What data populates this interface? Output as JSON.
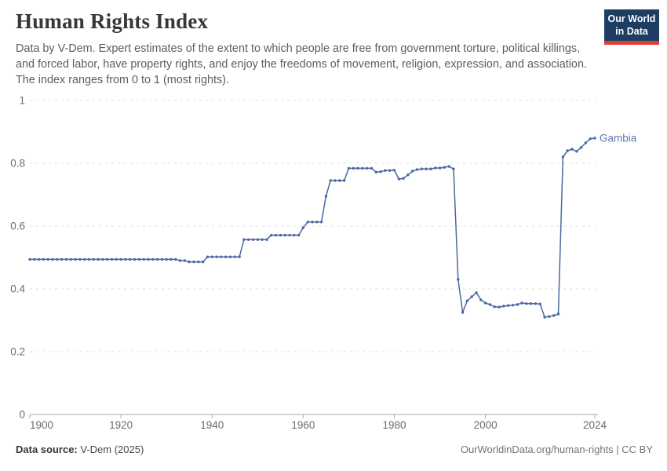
{
  "header": {
    "title": "Human Rights Index",
    "subtitle": "Data by V-Dem. Expert estimates of the extent to which people are free from government torture, political killings, and forced labor, have property rights, and enjoy the freedoms of movement, religion, expression, and association. The index ranges from 0 to 1 (most rights).",
    "logo": {
      "line1": "Our World",
      "line2": "in Data"
    }
  },
  "chart_data": {
    "type": "line",
    "title": "Human Rights Index",
    "xlabel": "",
    "ylabel": "",
    "xlim": [
      1900,
      2024
    ],
    "ylim": [
      0,
      1
    ],
    "xticks": [
      1900,
      1920,
      1940,
      1960,
      1980,
      2000,
      2024
    ],
    "yticks": [
      0,
      0.2,
      0.4,
      0.6,
      0.8,
      1
    ],
    "ytick_labels": [
      "0",
      "0.2",
      "0.4",
      "0.6",
      "0.8",
      "1"
    ],
    "grid": "horizontal-dashed",
    "legend_position": "label-at-line-end",
    "series": [
      {
        "name": "Gambia",
        "x": [
          1900,
          1901,
          1902,
          1903,
          1904,
          1905,
          1906,
          1907,
          1908,
          1909,
          1910,
          1911,
          1912,
          1913,
          1914,
          1915,
          1916,
          1917,
          1918,
          1919,
          1920,
          1921,
          1922,
          1923,
          1924,
          1925,
          1926,
          1927,
          1928,
          1929,
          1930,
          1931,
          1932,
          1933,
          1934,
          1935,
          1936,
          1937,
          1938,
          1939,
          1940,
          1941,
          1942,
          1943,
          1944,
          1945,
          1946,
          1947,
          1948,
          1949,
          1950,
          1951,
          1952,
          1953,
          1954,
          1955,
          1956,
          1957,
          1958,
          1959,
          1960,
          1961,
          1962,
          1963,
          1964,
          1965,
          1966,
          1967,
          1968,
          1969,
          1970,
          1971,
          1972,
          1973,
          1974,
          1975,
          1976,
          1977,
          1978,
          1979,
          1980,
          1981,
          1982,
          1983,
          1984,
          1985,
          1986,
          1987,
          1988,
          1989,
          1990,
          1991,
          1992,
          1993,
          1994,
          1995,
          1996,
          1997,
          1998,
          1999,
          2000,
          2001,
          2002,
          2003,
          2004,
          2005,
          2006,
          2007,
          2008,
          2009,
          2010,
          2011,
          2012,
          2013,
          2014,
          2015,
          2016,
          2017,
          2018,
          2019,
          2020,
          2021,
          2022,
          2023,
          2024
        ],
        "values": [
          0.494,
          0.494,
          0.494,
          0.494,
          0.494,
          0.494,
          0.494,
          0.494,
          0.494,
          0.494,
          0.494,
          0.494,
          0.494,
          0.494,
          0.494,
          0.494,
          0.494,
          0.494,
          0.494,
          0.494,
          0.494,
          0.494,
          0.494,
          0.494,
          0.494,
          0.494,
          0.494,
          0.494,
          0.494,
          0.494,
          0.494,
          0.494,
          0.494,
          0.49,
          0.49,
          0.486,
          0.486,
          0.486,
          0.486,
          0.502,
          0.502,
          0.502,
          0.502,
          0.502,
          0.502,
          0.502,
          0.502,
          0.557,
          0.557,
          0.557,
          0.557,
          0.557,
          0.557,
          0.571,
          0.571,
          0.571,
          0.571,
          0.571,
          0.571,
          0.571,
          0.595,
          0.613,
          0.613,
          0.613,
          0.613,
          0.695,
          0.745,
          0.745,
          0.745,
          0.745,
          0.784,
          0.784,
          0.784,
          0.784,
          0.784,
          0.784,
          0.772,
          0.773,
          0.777,
          0.777,
          0.778,
          0.75,
          0.752,
          0.763,
          0.775,
          0.78,
          0.782,
          0.782,
          0.782,
          0.785,
          0.785,
          0.787,
          0.79,
          0.782,
          0.43,
          0.325,
          0.362,
          0.375,
          0.388,
          0.365,
          0.355,
          0.35,
          0.343,
          0.342,
          0.345,
          0.347,
          0.348,
          0.35,
          0.355,
          0.353,
          0.353,
          0.353,
          0.352,
          0.31,
          0.312,
          0.315,
          0.32,
          0.82,
          0.84,
          0.845,
          0.838,
          0.85,
          0.865,
          0.878,
          0.88
        ]
      }
    ]
  },
  "footer": {
    "source_label": "Data source:",
    "source_value": " V-Dem (2025)",
    "attribution": "OurWorldinData.org/human-rights | CC BY"
  },
  "colors": {
    "line": "#4a69a2",
    "entity_label": "#5a7aad",
    "grid": "#dedede",
    "axis": "#a8a8a8",
    "tick_text": "#6b6b6b",
    "logo_bg": "#1d3d63",
    "logo_stripe": "#e23d34"
  }
}
